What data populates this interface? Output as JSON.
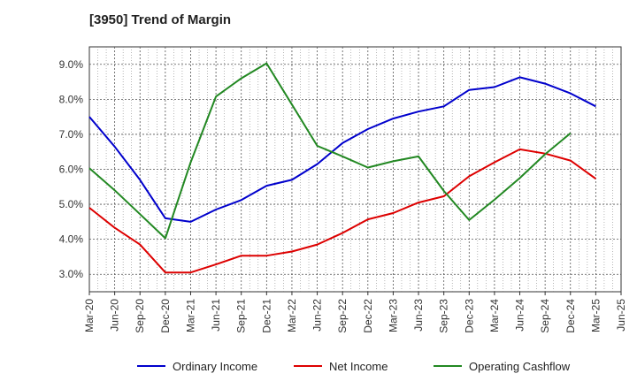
{
  "chart_data": {
    "type": "line",
    "title": "[3950]  Trend of Margin",
    "xlabel": "",
    "ylabel": "",
    "ylim": [
      2.5,
      9.5
    ],
    "yticks": [
      "3.0%",
      "4.0%",
      "5.0%",
      "6.0%",
      "7.0%",
      "8.0%",
      "9.0%"
    ],
    "ytick_values": [
      3,
      4,
      5,
      6,
      7,
      8,
      9
    ],
    "categories": [
      "Mar-20",
      "Jun-20",
      "Sep-20",
      "Dec-20",
      "Mar-21",
      "Jun-21",
      "Sep-21",
      "Dec-21",
      "Mar-22",
      "Jun-22",
      "Sep-22",
      "Dec-22",
      "Mar-23",
      "Jun-23",
      "Sep-23",
      "Dec-23",
      "Mar-24",
      "Jun-24",
      "Sep-24",
      "Dec-24",
      "Mar-25",
      "Jun-25"
    ],
    "grid": true,
    "legend": "bottom",
    "series": [
      {
        "name": "Ordinary Income",
        "color": "#0000cc",
        "values": [
          7.5,
          6.65,
          5.7,
          4.6,
          4.5,
          4.85,
          5.12,
          5.53,
          5.7,
          6.15,
          6.75,
          7.15,
          7.45,
          7.65,
          7.8,
          8.27,
          8.35,
          8.63,
          8.45,
          8.17,
          7.8,
          null
        ]
      },
      {
        "name": "Net Income",
        "color": "#dd0000",
        "values": [
          4.9,
          4.33,
          3.85,
          3.05,
          3.05,
          3.28,
          3.53,
          3.53,
          3.65,
          3.85,
          4.18,
          4.57,
          4.75,
          5.05,
          5.23,
          5.8,
          6.2,
          6.57,
          6.45,
          6.25,
          5.73,
          null
        ]
      },
      {
        "name": "Operating Cashflow",
        "color": "#228822",
        "values": [
          6.03,
          5.4,
          4.72,
          4.03,
          6.2,
          8.08,
          8.6,
          9.03,
          7.85,
          6.67,
          6.37,
          6.05,
          6.23,
          6.37,
          5.38,
          4.55,
          5.13,
          5.75,
          6.43,
          7.03,
          null,
          null
        ]
      }
    ]
  }
}
